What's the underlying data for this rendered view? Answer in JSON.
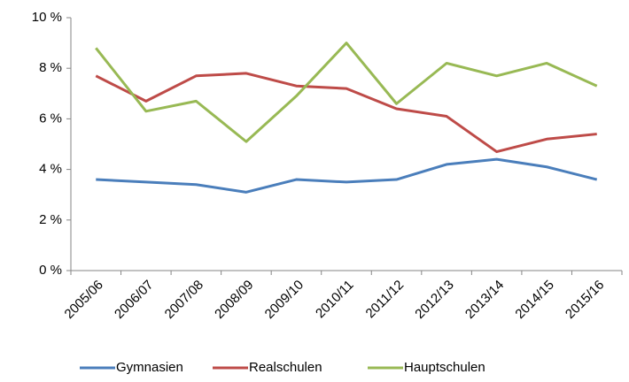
{
  "chart_data": {
    "type": "line",
    "categories": [
      "2005/06",
      "2006/07",
      "2007/08",
      "2008/09",
      "2009/10",
      "2010/11",
      "2011/12",
      "2012/13",
      "2013/14",
      "2014/15",
      "2015/16"
    ],
    "series": [
      {
        "name": "Gymnasien",
        "color": "#4a7ebb",
        "values": [
          3.6,
          3.5,
          3.4,
          3.1,
          3.6,
          3.5,
          3.6,
          4.2,
          4.4,
          4.1,
          3.6
        ]
      },
      {
        "name": "Realschulen",
        "color": "#be4b48",
        "values": [
          7.7,
          6.7,
          7.7,
          7.8,
          7.3,
          7.2,
          6.4,
          6.1,
          4.7,
          5.2,
          5.4
        ]
      },
      {
        "name": "Hauptschulen",
        "color": "#98b954",
        "values": [
          8.8,
          6.3,
          6.7,
          5.1,
          6.9,
          9.0,
          6.6,
          8.2,
          7.7,
          8.2,
          7.3
        ]
      }
    ],
    "ylim": [
      0,
      10
    ],
    "yticks": [
      {
        "value": 0,
        "label": "0 %"
      },
      {
        "value": 2,
        "label": "2 %"
      },
      {
        "value": 4,
        "label": "4 %"
      },
      {
        "value": 6,
        "label": "6 %"
      },
      {
        "value": 8,
        "label": "8 %"
      },
      {
        "value": 10,
        "label": "10 %"
      }
    ],
    "grid": false,
    "legend": "bottom"
  }
}
